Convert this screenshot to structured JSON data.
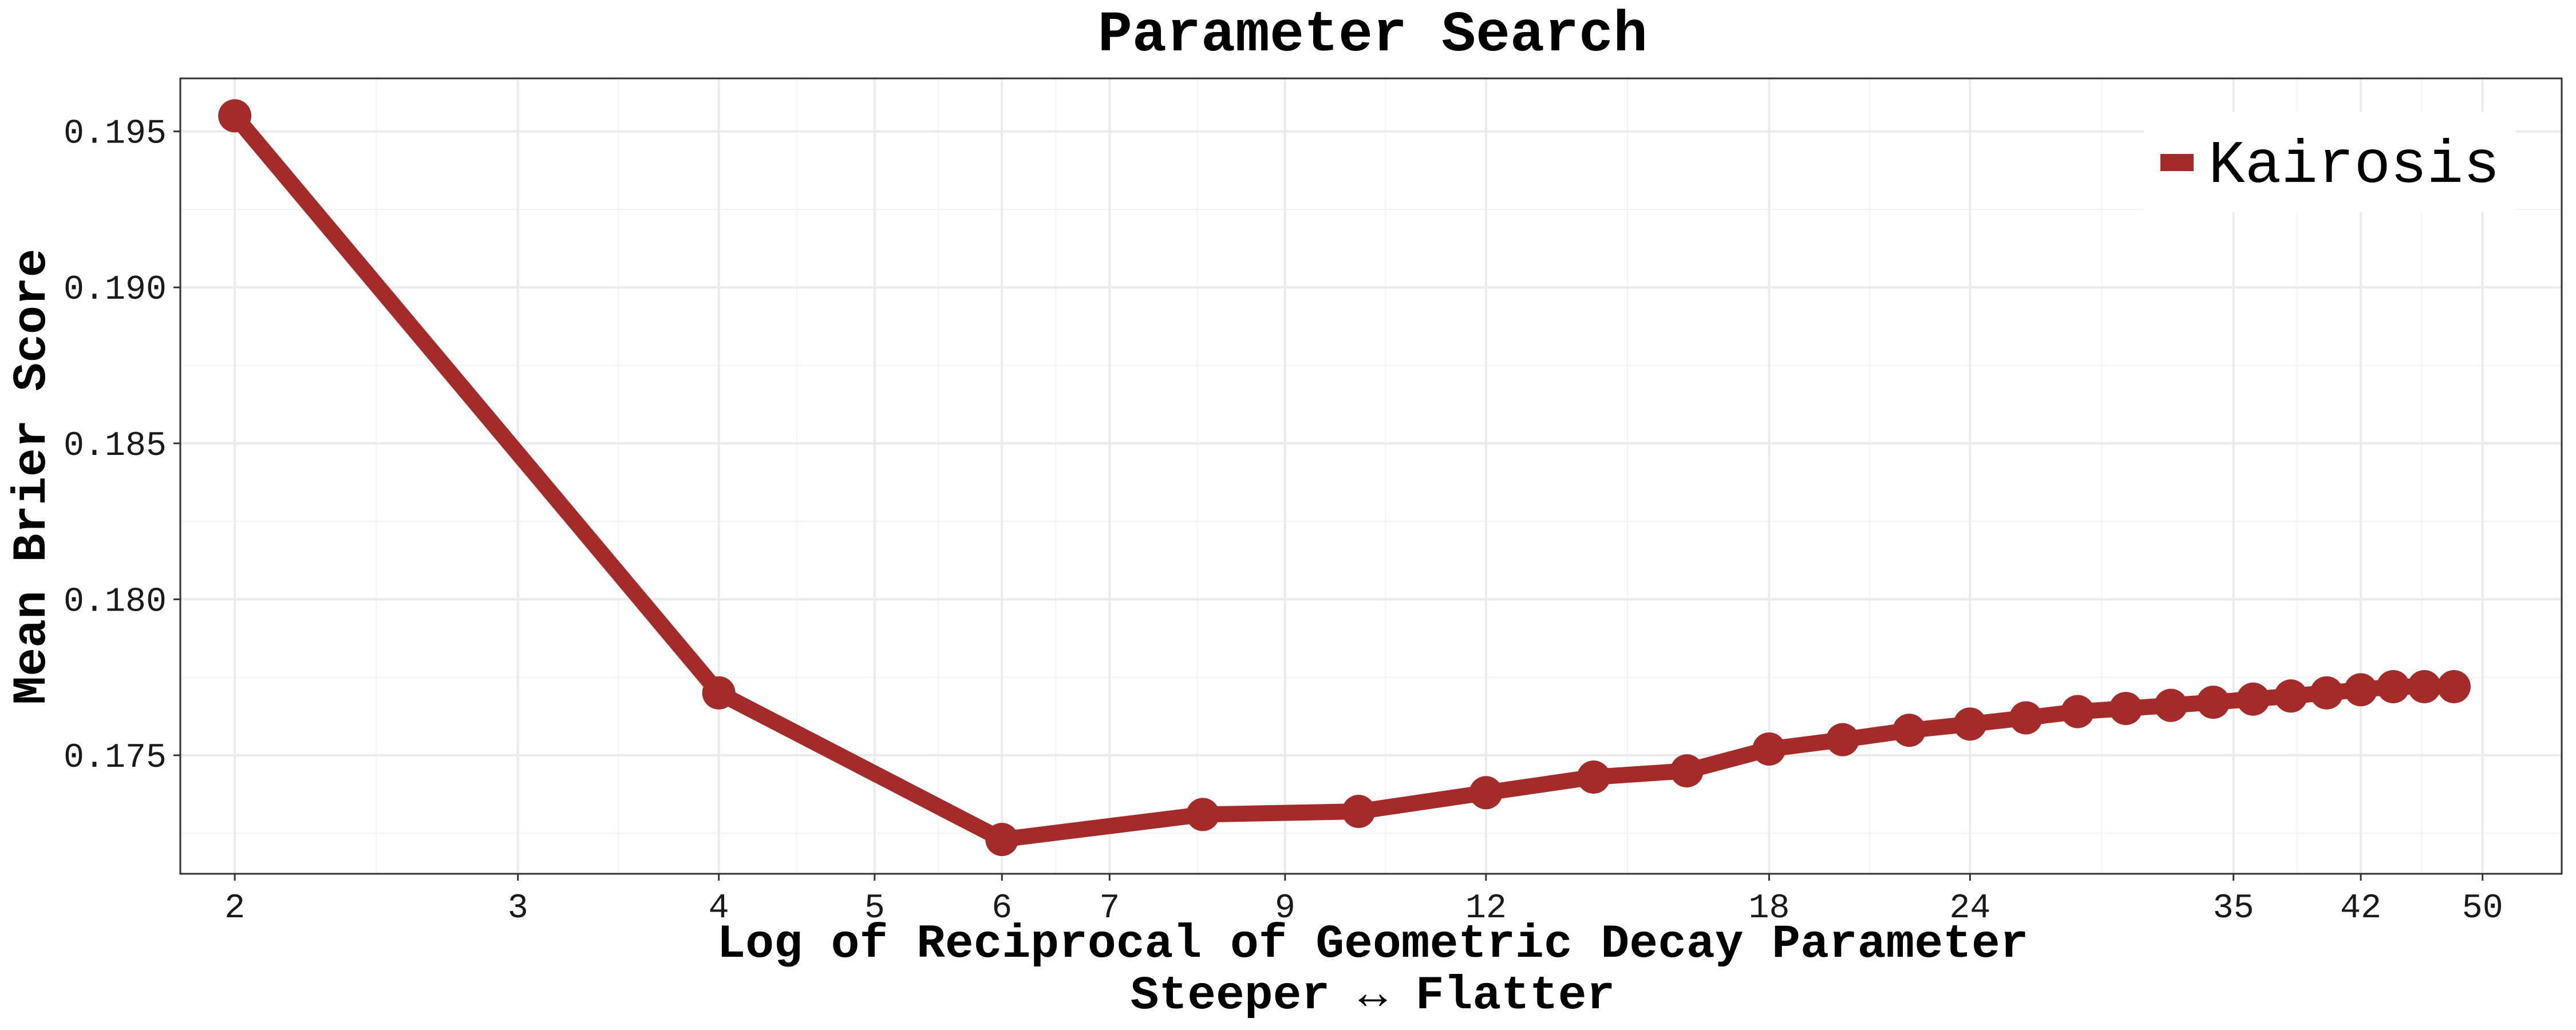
{
  "colors": {
    "series": "#A52A2A",
    "grid_major": "#EBEBEB",
    "grid_minor": "#F3F3F3",
    "panel_border": "#333333",
    "background": "#FFFFFF"
  },
  "chart_data": {
    "type": "line",
    "title": "Parameter Search",
    "xlabel": "Log of Reciprocal of Geometric Decay Parameter",
    "xlabel_sub": "Steeper ↔ Flatter",
    "ylabel": "Mean Brier Score",
    "x_scale": "log",
    "xlim": [
      1.85,
      56
    ],
    "ylim": [
      0.1712,
      0.1967
    ],
    "x_ticks": [
      2,
      3,
      4,
      5,
      6,
      7,
      9,
      12,
      18,
      24,
      35,
      42,
      50
    ],
    "x_tick_labels": [
      "2",
      "3",
      "4",
      "5",
      "6",
      "7",
      "9",
      "12",
      "18",
      "24",
      "35",
      "42",
      "50"
    ],
    "y_ticks": [
      0.175,
      0.18,
      0.185,
      0.19,
      0.195
    ],
    "y_tick_labels": [
      "0.175",
      "0.180",
      "0.185",
      "0.190",
      "0.195"
    ],
    "grid": true,
    "legend_position": "top-right",
    "series": [
      {
        "name": "Kairosis",
        "color": "#A52A2A",
        "x": [
          2,
          4,
          6,
          8,
          10,
          12,
          14,
          16,
          18,
          20,
          22,
          24,
          26,
          28,
          30,
          32,
          34,
          36,
          38,
          40,
          42,
          44,
          46,
          48
        ],
        "y": [
          0.1955,
          0.177,
          0.1723,
          0.1731,
          0.1732,
          0.1738,
          0.1743,
          0.1745,
          0.1752,
          0.1755,
          0.1758,
          0.176,
          0.1762,
          0.1764,
          0.1765,
          0.1766,
          0.1767,
          0.1768,
          0.1769,
          0.177,
          0.1771,
          0.1772,
          0.1772,
          0.1772
        ]
      }
    ]
  }
}
